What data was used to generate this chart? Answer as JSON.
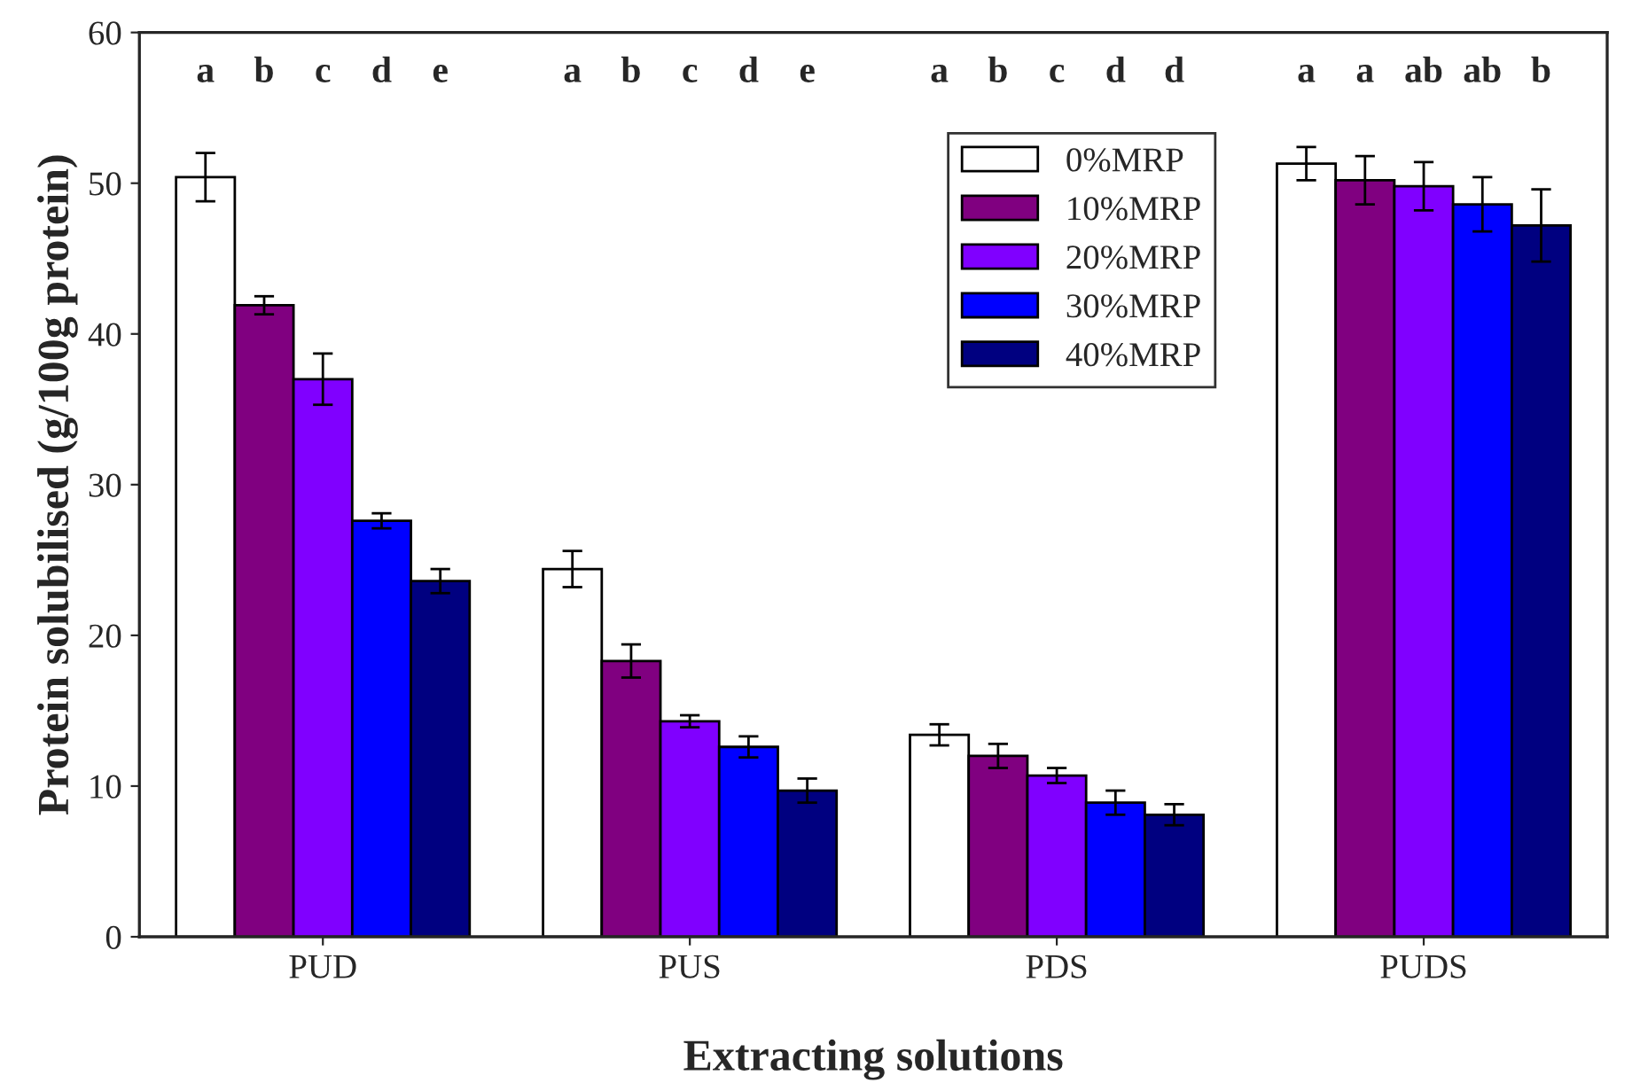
{
  "chart_data": {
    "type": "bar",
    "xlabel": "Extracting solutions",
    "ylabel": "Protein solubilised (g/100g protein)",
    "categories": [
      "PUD",
      "PUS",
      "PDS",
      "PUDS"
    ],
    "series": [
      {
        "name": "0%MRP",
        "color": "#ffffff",
        "values": [
          50.4,
          24.4,
          13.4,
          51.3
        ],
        "errors": [
          1.6,
          1.2,
          0.7,
          1.1
        ]
      },
      {
        "name": "10%MRP",
        "color": "#800080",
        "values": [
          41.9,
          18.3,
          12.0,
          50.2
        ],
        "errors": [
          0.6,
          1.1,
          0.8,
          1.6
        ]
      },
      {
        "name": "20%MRP",
        "color": "#8000ff",
        "values": [
          37.0,
          14.3,
          10.7,
          49.8
        ],
        "errors": [
          1.7,
          0.4,
          0.5,
          1.6
        ]
      },
      {
        "name": "30%MRP",
        "color": "#0000ff",
        "values": [
          27.6,
          12.6,
          8.9,
          48.6
        ],
        "errors": [
          0.5,
          0.7,
          0.8,
          1.8
        ]
      },
      {
        "name": "40%MRP",
        "color": "#000080",
        "values": [
          23.6,
          9.7,
          8.1,
          47.2
        ],
        "errors": [
          0.8,
          0.8,
          0.7,
          2.4
        ]
      }
    ],
    "annotations": [
      "a",
      "b",
      "c",
      "d",
      "e",
      "a",
      "b",
      "c",
      "d",
      "e",
      "a",
      "b",
      "c",
      "d",
      "d",
      "a",
      "a",
      "ab",
      "ab",
      "b"
    ],
    "ylim": [
      0,
      60
    ],
    "yticks": [
      0,
      10,
      20,
      30,
      40,
      50,
      60
    ],
    "grid": false,
    "legend": "top right"
  }
}
